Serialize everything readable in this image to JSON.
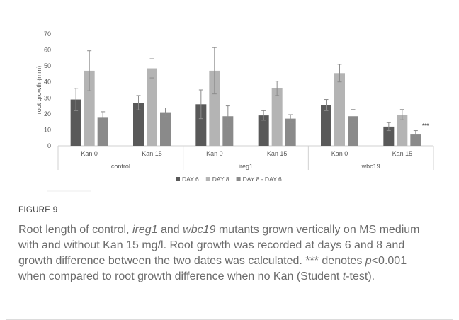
{
  "chart_data": {
    "type": "bar",
    "ylabel": "root growth (mm)",
    "ylim": [
      0,
      70
    ],
    "yticks": [
      0,
      10,
      20,
      30,
      40,
      50,
      60,
      70
    ],
    "grid": false,
    "legend_position": "bottom",
    "groups": [
      "control",
      "ireg1",
      "wbc19"
    ],
    "categories": [
      "Kan 0",
      "Kan 15",
      "Kan 0",
      "Kan 15",
      "Kan 0",
      "Kan 15"
    ],
    "series": [
      {
        "name": "DAY 6",
        "color": "#595959",
        "values": [
          29,
          27,
          26,
          19,
          25.5,
          12
        ],
        "errors": [
          7,
          4.5,
          9,
          3,
          3.5,
          2.5
        ]
      },
      {
        "name": "DAY 8",
        "color": "#b4b4b4",
        "values": [
          47,
          48.5,
          47,
          36,
          45.5,
          19.5
        ],
        "errors": [
          12.5,
          6,
          14.5,
          4.5,
          5.5,
          3.2
        ]
      },
      {
        "name": "DAY 8 - DAY 6",
        "color": "#8a8a8a",
        "values": [
          18,
          21,
          18.5,
          17,
          18.5,
          7.5
        ],
        "errors": [
          3.3,
          2.7,
          6.5,
          2.5,
          4.2,
          2
        ]
      }
    ],
    "annotations": [
      {
        "category_index": 5,
        "series": "DAY 8 - DAY 6",
        "text": "***"
      }
    ]
  },
  "caption": {
    "label": "FIGURE 9",
    "p1": "Root length of control, ",
    "g1": "ireg1",
    "p2": " and ",
    "g2": "wbc19",
    "p3": " mutants grown vertically on MS medium with and without Kan 15 mg/l. Root growth was recorded at days 6 and 8 and growth difference between the two dates was calculated. *** denotes ",
    "pv": "p",
    "p4": "<0.001 when compared to root growth difference when no Kan (Student ",
    "tv": "t",
    "p5": "-test)."
  }
}
